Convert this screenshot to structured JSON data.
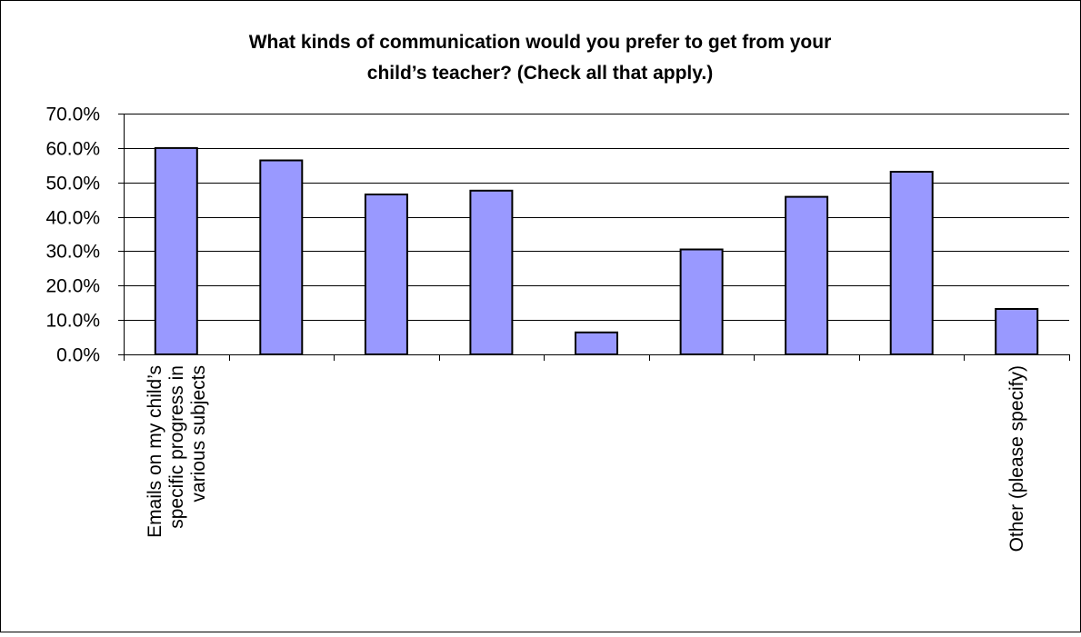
{
  "chart_data": {
    "type": "bar",
    "title": "What kinds of communication would you prefer to get from your child’s teacher? (Check all that apply.)",
    "title_lines": [
      "What kinds of communication would you prefer to get from your",
      "child’s teacher? (Check all that apply.)"
    ],
    "xlabel": "",
    "ylabel": "",
    "ylim": [
      0,
      70
    ],
    "yticks": [
      0,
      10,
      20,
      30,
      40,
      50,
      60,
      70
    ],
    "ytick_labels": [
      "0.0%",
      "10.0%",
      "20.0%",
      "30.0%",
      "40.0%",
      "50.0%",
      "60.0%",
      "70.0%"
    ],
    "grid": true,
    "legend": false,
    "categories": [
      "Emails on my child’s specific progress in various subjects",
      "",
      "",
      "",
      "",
      "",
      "",
      "",
      "Other (please specify)"
    ],
    "category_label_lines": [
      [
        "Emails on my child’s",
        "specific progress in",
        "various subjects"
      ],
      [],
      [],
      [],
      [],
      [],
      [],
      [],
      [
        "Other (please specify)"
      ]
    ],
    "values": [
      60.0,
      56.4,
      46.5,
      47.6,
      6.4,
      30.5,
      45.8,
      53.1,
      13.2
    ],
    "colors": {
      "bar_fill": "#9999ff",
      "bar_stroke": "#000000",
      "gridline": "#000000",
      "axis": "#000000",
      "frame": "#000000",
      "background": "#ffffff"
    }
  }
}
